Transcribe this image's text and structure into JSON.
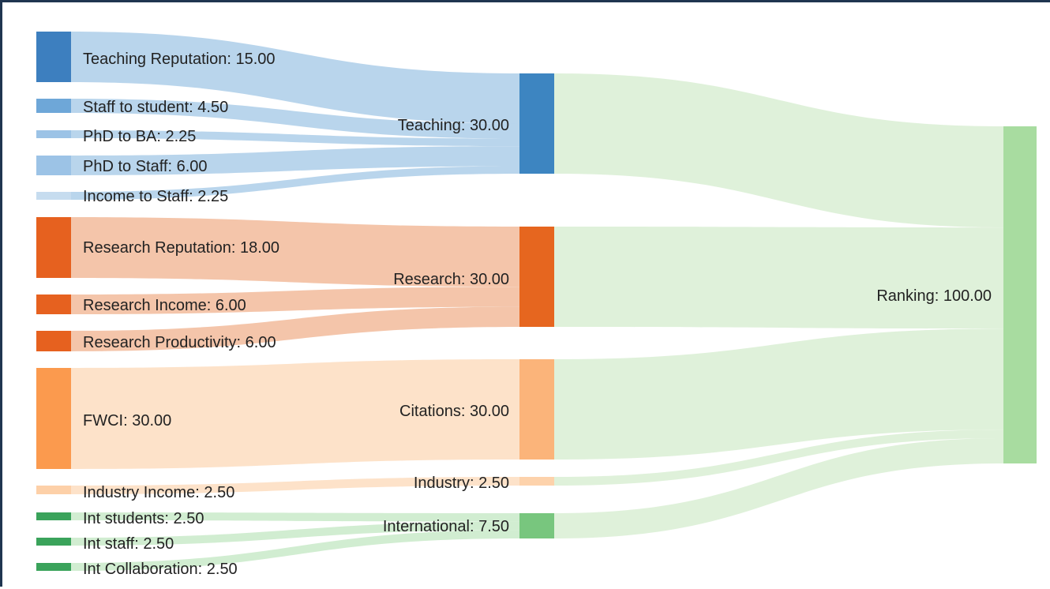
{
  "chart_data": {
    "type": "sankey",
    "nodes": [
      {
        "id": "teaching_reputation",
        "label": "Teaching Reputation: 15.00",
        "value": 15.0,
        "color": "#3d7fbf"
      },
      {
        "id": "staff_to_student",
        "label": "Staff to student: 4.50",
        "value": 4.5,
        "color": "#6ea7d8"
      },
      {
        "id": "phd_to_ba",
        "label": "PhD to BA: 2.25",
        "value": 2.25,
        "color": "#9cc3e6"
      },
      {
        "id": "phd_to_staff",
        "label": "PhD to Staff: 6.00",
        "value": 6.0,
        "color": "#9cc3e6"
      },
      {
        "id": "income_to_staff",
        "label": "Income to Staff: 2.25",
        "value": 2.25,
        "color": "#c6dcef"
      },
      {
        "id": "research_reputation",
        "label": "Research Reputation: 18.00",
        "value": 18.0,
        "color": "#e6611f"
      },
      {
        "id": "research_income",
        "label": "Research Income: 6.00",
        "value": 6.0,
        "color": "#e6611f"
      },
      {
        "id": "research_productivity",
        "label": "Research Productivity: 6.00",
        "value": 6.0,
        "color": "#e6611f"
      },
      {
        "id": "fwci",
        "label": "FWCI: 30.00",
        "value": 30.0,
        "color": "#fb9a4e"
      },
      {
        "id": "industry_income",
        "label": "Industry Income: 2.50",
        "value": 2.5,
        "color": "#fdd0a8"
      },
      {
        "id": "int_students",
        "label": "Int students: 2.50",
        "value": 2.5,
        "color": "#3aa35b"
      },
      {
        "id": "int_staff",
        "label": "Int staff: 2.50",
        "value": 2.5,
        "color": "#3aa35b"
      },
      {
        "id": "int_collaboration",
        "label": "Int Collaboration: 2.50",
        "value": 2.5,
        "color": "#3aa35b"
      },
      {
        "id": "teaching",
        "label": "Teaching: 30.00",
        "value": 30.0,
        "color": "#3d85c1"
      },
      {
        "id": "research",
        "label": "Research: 30.00",
        "value": 30.0,
        "color": "#e6661f"
      },
      {
        "id": "citations",
        "label": "Citations: 30.00",
        "value": 30.0,
        "color": "#fbb47a"
      },
      {
        "id": "industry",
        "label": "Industry: 2.50",
        "value": 2.5,
        "color": "#fdd2ab"
      },
      {
        "id": "international",
        "label": "International: 7.50",
        "value": 7.5,
        "color": "#78c67e"
      },
      {
        "id": "ranking",
        "label": "Ranking: 100.00",
        "value": 100.0,
        "color": "#a8dca0"
      }
    ],
    "links": [
      {
        "source": "teaching_reputation",
        "target": "teaching",
        "value": 15.0,
        "color": "#b3d1ea"
      },
      {
        "source": "staff_to_student",
        "target": "teaching",
        "value": 4.5,
        "color": "#b3d1ea"
      },
      {
        "source": "phd_to_ba",
        "target": "teaching",
        "value": 2.25,
        "color": "#b3d1ea"
      },
      {
        "source": "phd_to_staff",
        "target": "teaching",
        "value": 6.0,
        "color": "#b3d1ea"
      },
      {
        "source": "income_to_staff",
        "target": "teaching",
        "value": 2.25,
        "color": "#b3d1ea"
      },
      {
        "source": "research_reputation",
        "target": "research",
        "value": 18.0,
        "color": "#f3c0a3"
      },
      {
        "source": "research_income",
        "target": "research",
        "value": 6.0,
        "color": "#f3c0a3"
      },
      {
        "source": "research_productivity",
        "target": "research",
        "value": 6.0,
        "color": "#f3c0a3"
      },
      {
        "source": "fwci",
        "target": "citations",
        "value": 30.0,
        "color": "#fde0c4"
      },
      {
        "source": "industry_income",
        "target": "industry",
        "value": 2.5,
        "color": "#fde0c4"
      },
      {
        "source": "int_students",
        "target": "international",
        "value": 2.5,
        "color": "#cdeccd"
      },
      {
        "source": "int_staff",
        "target": "international",
        "value": 2.5,
        "color": "#cdeccd"
      },
      {
        "source": "int_collaboration",
        "target": "international",
        "value": 2.5,
        "color": "#cdeccd"
      },
      {
        "source": "teaching",
        "target": "ranking",
        "value": 30.0,
        "color": "#dcf0d7"
      },
      {
        "source": "research",
        "target": "ranking",
        "value": 30.0,
        "color": "#dcf0d7"
      },
      {
        "source": "citations",
        "target": "ranking",
        "value": 30.0,
        "color": "#dcf0d7"
      },
      {
        "source": "industry",
        "target": "ranking",
        "value": 2.5,
        "color": "#dcf0d7"
      },
      {
        "source": "international",
        "target": "ranking",
        "value": 7.5,
        "color": "#dcf0d7"
      }
    ]
  }
}
